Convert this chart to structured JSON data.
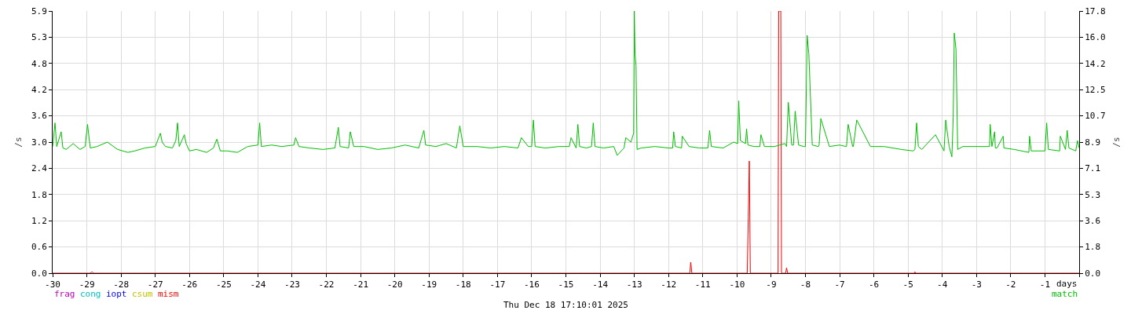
{
  "chart_data": {
    "type": "line",
    "xlabel": "days",
    "ylabel": "/s",
    "y2label": "/s",
    "annotations": [
      "Thu Dec 18 17:10:01 2025"
    ],
    "xlim": [
      -30,
      0
    ],
    "xticks": [
      -30,
      -29,
      -28,
      -27,
      -26,
      -25,
      -24,
      -23,
      -22,
      -21,
      -20,
      -19,
      -18,
      -17,
      -16,
      -15,
      -14,
      -13,
      -12,
      -11,
      -10,
      -9,
      -8,
      -7,
      -6,
      -5,
      -4,
      -3,
      -2,
      -1,
      {
        "value": 0,
        "label": null
      }
    ],
    "ylim": [
      0,
      5.94
    ],
    "yticks": [
      {
        "value": 0,
        "label": "0.0"
      },
      {
        "value": 0.594,
        "label": "0.6"
      },
      {
        "value": 1.188,
        "label": "1.2"
      },
      {
        "value": 1.782,
        "label": "1.8"
      },
      {
        "value": 2.376,
        "label": "2.4"
      },
      {
        "value": 2.97,
        "label": "3.0"
      },
      {
        "value": 3.564,
        "label": "3.6"
      },
      {
        "value": 4.158,
        "label": "4.2"
      },
      {
        "value": 4.752,
        "label": "4.8"
      },
      {
        "value": 5.346,
        "label": "5.3"
      },
      {
        "value": 5.94,
        "label": "5.9"
      }
    ],
    "y2lim": [
      0,
      17.8
    ],
    "y2ticks": [
      {
        "value": 0,
        "label": "0.0"
      },
      {
        "value": 1.78,
        "label": "1.8"
      },
      {
        "value": 3.56,
        "label": "3.6"
      },
      {
        "value": 5.34,
        "label": "5.3"
      },
      {
        "value": 7.12,
        "label": "7.1"
      },
      {
        "value": 8.9,
        "label": "8.9"
      },
      {
        "value": 10.68,
        "label": "10.7"
      },
      {
        "value": 12.46,
        "label": "12.5"
      },
      {
        "value": 14.24,
        "label": "14.2"
      },
      {
        "value": 16.02,
        "label": "16.0"
      },
      {
        "value": 17.8,
        "label": "17.8"
      }
    ],
    "grid": true,
    "legend": "bottom",
    "marker": "none",
    "line_style": "solid",
    "series": [
      {
        "name": "frag",
        "color": "#c000c0"
      },
      {
        "name": "cong",
        "color": "#00c0c0"
      },
      {
        "name": "iopt",
        "color": "#0000ff"
      },
      {
        "name": "csum",
        "color": "#c0c000"
      },
      {
        "name": "mism",
        "color": "#ff0000",
        "x": [
          -30,
          -28.9,
          -28.85,
          -28.8,
          -11.38,
          -11.35,
          -11.32,
          -9.7,
          -9.67,
          -9.64,
          -9.61,
          -8.8,
          -8.78,
          -8.72,
          -8.7,
          -8.58,
          -8.55,
          -8.52,
          -4.82,
          -4.8,
          -4.78,
          0
        ],
        "values": [
          0,
          0,
          0.03,
          0,
          0,
          0.25,
          0,
          0,
          1.27,
          2.54,
          0,
          0,
          5.94,
          5.94,
          0,
          0,
          0.12,
          0,
          0,
          0.03,
          0,
          0
        ]
      },
      {
        "name": "match",
        "color": "#00c000",
        "axis": "y2",
        "x": [
          -30,
          -29.93,
          -29.88,
          -29.75,
          -29.7,
          -29.6,
          -29.4,
          -29.2,
          -29.05,
          -28.98,
          -28.9,
          -28.7,
          -28.4,
          -28.1,
          -27.8,
          -27.6,
          -27.3,
          -27.0,
          -26.85,
          -26.8,
          -26.7,
          -26.5,
          -26.4,
          -26.35,
          -26.3,
          -26.15,
          -26.1,
          -26.0,
          -25.8,
          -25.5,
          -25.3,
          -25.2,
          -25.1,
          -24.9,
          -24.6,
          -24.3,
          -24.0,
          -23.95,
          -23.9,
          -23.6,
          -23.3,
          -22.95,
          -22.9,
          -22.8,
          -22.5,
          -22.1,
          -21.75,
          -21.65,
          -21.6,
          -21.35,
          -21.3,
          -21.2,
          -20.9,
          -20.5,
          -20.1,
          -19.7,
          -19.3,
          -19.15,
          -19.1,
          -18.8,
          -18.5,
          -18.2,
          -18.1,
          -18.0,
          -17.6,
          -17.2,
          -16.8,
          -16.4,
          -16.3,
          -16.1,
          -16.0,
          -15.95,
          -15.9,
          -15.6,
          -15.2,
          -14.9,
          -14.85,
          -14.7,
          -14.65,
          -14.6,
          -14.4,
          -14.25,
          -14.2,
          -14.15,
          -13.9,
          -13.6,
          -13.5,
          -13.3,
          -13.25,
          -13.1,
          -13.02,
          -13.0,
          -12.98,
          -12.95,
          -12.92,
          -12.8,
          -12.4,
          -12.0,
          -11.88,
          -11.85,
          -11.8,
          -11.62,
          -11.6,
          -11.4,
          -11.1,
          -10.85,
          -10.8,
          -10.75,
          -10.4,
          -10.1,
          -9.98,
          -9.95,
          -9.9,
          -9.75,
          -9.72,
          -9.68,
          -9.5,
          -9.33,
          -9.3,
          -9.2,
          -8.9,
          -8.75,
          -8.6,
          -8.55,
          -8.5,
          -8.4,
          -8.35,
          -8.3,
          -8.2,
          -8.05,
          -8.0,
          -7.95,
          -7.9,
          -7.8,
          -7.62,
          -7.6,
          -7.55,
          -7.3,
          -7.0,
          -6.82,
          -6.8,
          -6.75,
          -6.62,
          -6.6,
          -6.5,
          -6.1,
          -5.7,
          -5.2,
          -4.85,
          -4.8,
          -4.75,
          -4.7,
          -4.6,
          -4.2,
          -3.97,
          -3.95,
          -3.9,
          -3.8,
          -3.72,
          -3.68,
          -3.65,
          -3.6,
          -3.55,
          -3.4,
          -3.1,
          -2.62,
          -2.6,
          -2.55,
          -2.47,
          -2.45,
          -2.4,
          -2.22,
          -2.2,
          -1.9,
          -1.47,
          -1.45,
          -1.4,
          -1.0,
          -0.95,
          -0.9,
          -0.57,
          -0.55,
          -0.4,
          -0.35,
          -0.3,
          -0.1,
          -0.05,
          0
        ],
        "values": [
          8.6,
          10.2,
          8.6,
          9.6,
          8.5,
          8.4,
          8.8,
          8.4,
          8.6,
          10.1,
          8.5,
          8.6,
          8.9,
          8.4,
          8.2,
          8.3,
          8.5,
          8.6,
          9.5,
          8.9,
          8.6,
          8.5,
          9.0,
          10.2,
          8.6,
          9.4,
          8.8,
          8.3,
          8.4,
          8.2,
          8.5,
          9.1,
          8.3,
          8.3,
          8.2,
          8.6,
          8.7,
          10.2,
          8.6,
          8.7,
          8.6,
          8.7,
          9.2,
          8.6,
          8.5,
          8.4,
          8.5,
          9.9,
          8.6,
          8.5,
          9.6,
          8.6,
          8.6,
          8.4,
          8.5,
          8.7,
          8.5,
          9.7,
          8.7,
          8.6,
          8.8,
          8.5,
          10.0,
          8.6,
          8.6,
          8.5,
          8.6,
          8.5,
          9.2,
          8.6,
          8.6,
          10.4,
          8.6,
          8.5,
          8.6,
          8.6,
          9.2,
          8.5,
          10.1,
          8.6,
          8.5,
          8.6,
          10.2,
          8.6,
          8.5,
          8.6,
          8.0,
          8.5,
          9.2,
          8.9,
          9.5,
          17.8,
          14.9,
          14.1,
          8.4,
          8.5,
          8.6,
          8.5,
          8.5,
          9.6,
          8.6,
          8.5,
          9.3,
          8.6,
          8.5,
          8.5,
          9.7,
          8.6,
          8.5,
          8.9,
          8.8,
          11.7,
          9.0,
          8.8,
          9.8,
          8.7,
          8.6,
          8.6,
          9.4,
          8.6,
          8.6,
          8.7,
          8.8,
          8.6,
          11.6,
          8.7,
          8.7,
          11.0,
          8.7,
          8.6,
          8.6,
          16.15,
          14.9,
          8.7,
          8.6,
          8.7,
          10.5,
          8.6,
          8.7,
          8.6,
          8.6,
          10.1,
          8.6,
          8.6,
          10.4,
          8.6,
          8.6,
          8.4,
          8.3,
          8.4,
          10.2,
          8.6,
          8.4,
          9.4,
          8.4,
          8.3,
          10.4,
          8.6,
          7.9,
          10.6,
          16.3,
          15.2,
          8.4,
          8.6,
          8.6,
          8.6,
          10.1,
          8.6,
          9.6,
          8.5,
          8.5,
          9.3,
          8.5,
          8.4,
          8.2,
          9.3,
          8.3,
          8.3,
          10.2,
          8.4,
          8.3,
          9.3,
          8.4,
          9.7,
          8.5,
          8.3,
          9.0,
          8.5
        ]
      }
    ]
  }
}
